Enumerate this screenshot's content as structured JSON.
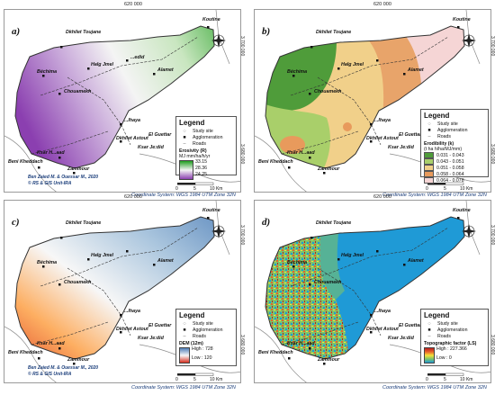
{
  "coords": {
    "easting": "620 000",
    "northing_top": "3 700 000",
    "northing_bottom": "3 680 000"
  },
  "coordinate_system": "Coordinate System: WGS 1984 UTM Zone 32N",
  "places": {
    "koutine": "Koutine",
    "dkhilet": "Dkhilet Toujane",
    "halg": "Halg Jmel",
    "bechima": "Béchima",
    "chouamekh": "Chouamekh",
    "jedid": "...edid",
    "amamet": "Alamet",
    "eddeghira": "...lhaya",
    "astout": "Dkhilet Astout",
    "guettar": "El Guettar",
    "ksarjedid": "Ksar Je:did",
    "hdada": "Ksar H...aad",
    "beni": "Beni Kheddach",
    "zammour": "Zammour"
  },
  "credits": {
    "line1": "Ben Zaied M. & Ouessar M., 2020",
    "line2": "© RS & GIS Unit-IRA"
  },
  "scale": {
    "zero": "0",
    "five": "5",
    "ten": "10 Km"
  },
  "panels": {
    "a": {
      "label": "a)",
      "legend_title": "Legend",
      "study": "Study site",
      "agglo": "Agglomeration",
      "roads": "Roads",
      "var_title": "Erosivity (R)",
      "var_unit": "MJ mm/ha/h/yr",
      "v1": "33.15",
      "v2": "28.36",
      "v3": "24.25"
    },
    "b": {
      "label": "b)",
      "legend_title": "Legend",
      "study": "Study site",
      "agglo": "Agglomeration",
      "roads": "Roads",
      "var_title": "Erodibility (k)",
      "var_unit": "(t ha h/ha/MJ/mm)",
      "classes": [
        "0.031 - 0.043",
        "0.043 - 0.051",
        "0.051 - 0.058",
        "0.058 - 0.064",
        "0.064 - 0.078"
      ]
    },
    "c": {
      "label": "c)",
      "legend_title": "Legend",
      "study": "Study site",
      "agglo": "Agglomeration",
      "roads": "Roads",
      "var_title": "DEM (12m)",
      "high": "High : 728",
      "low": "Low : 120"
    },
    "d": {
      "label": "d)",
      "legend_title": "Legend",
      "study": "Study site",
      "agglo": "Agglomeration",
      "roads": "Roads",
      "var_title": "Topographic factor (LS)",
      "high": "High : 227.366",
      "low": "Low : 0"
    }
  },
  "colors": {
    "erosivity": [
      "#1f9e1f",
      "#f4f4f4",
      "#8b3fb0"
    ],
    "erodibility": [
      "#4f9c3a",
      "#a9cf6a",
      "#f1d08a",
      "#e89a5c",
      "#f5d5d5"
    ],
    "dem": [
      "#d7301f",
      "#fdae61",
      "#f7f7f7",
      "#abc6de",
      "#4f7fb8"
    ],
    "ls": [
      "#1f9ad6",
      "#7cc36a",
      "#f5e33a",
      "#e8622b",
      "#b81d1d"
    ]
  }
}
